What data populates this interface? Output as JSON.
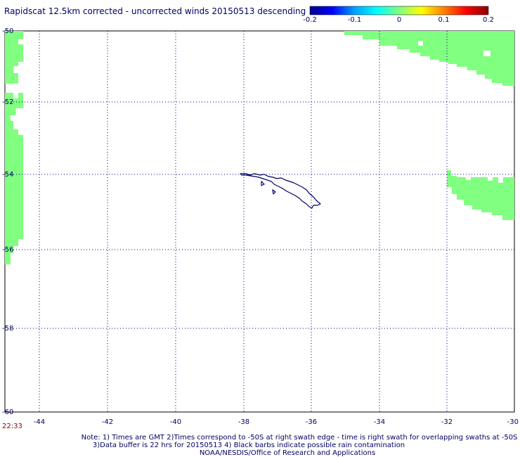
{
  "title": "Rapidscat 12.5km corrected - uncorrected winds 20150513 descending",
  "colorbar": {
    "ticks": [
      "-0.2",
      "-0.1",
      "0",
      "0.1",
      "0.2"
    ],
    "stops": [
      "#00008b",
      "#0000ff",
      "#00a0ff",
      "#00ffff",
      "#7fff7f",
      "#ffff00",
      "#ff8000",
      "#ff0000",
      "#8b0000"
    ]
  },
  "map": {
    "lat_labels": [
      "-50",
      "-52",
      "-54",
      "-56",
      "-58",
      "-60"
    ],
    "lon_labels": [
      "-44",
      "-42",
      "-40",
      "-38",
      "-36",
      "-34",
      "-32",
      "-30"
    ],
    "land_outline_color": "#000066",
    "swath_color": "#80ff80",
    "grid_color": "#000080"
  },
  "time_label": "22:33",
  "notes": [
    "Note: 1) Times are GMT 2)Times correspond to -50S at right swath edge - time is right swath for overlapping swaths at -50S",
    "3)Data buffer is 22 hrs for 20150513 4) Black barbs indicate possible rain contamination",
    "NOAA/NESDIS/Office of Research and Applications"
  ]
}
